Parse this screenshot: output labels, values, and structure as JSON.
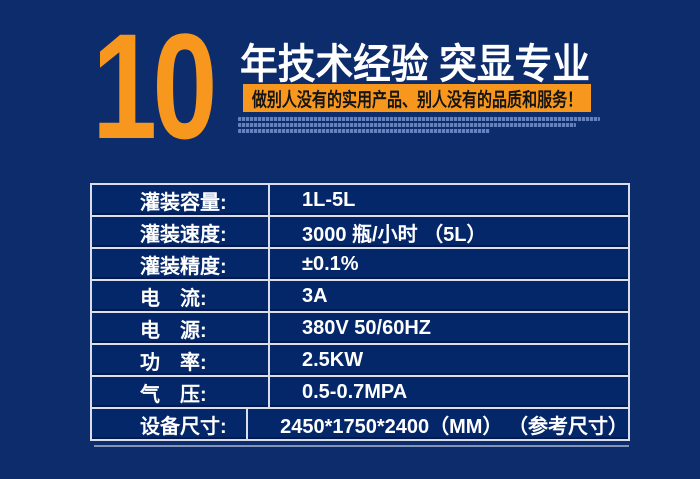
{
  "colors": {
    "page_bg": "#0d2c6c",
    "row_bg": "#04276a",
    "table_border": "#d9dee9",
    "accent_orange": "#f8971d",
    "banner_text": "#141414",
    "header_text": "#ffffff"
  },
  "header": {
    "big_number": "10",
    "title": "年技术经验 突显专业",
    "banner": "做别人没有的实用产品、别人没有的品质和服务！",
    "fine_print_lines": 3,
    "fine_print_legible": false
  },
  "spec_table": {
    "rows": [
      {
        "label": "灌装容量:",
        "value": "1L-5L"
      },
      {
        "label": "灌装速度:",
        "value": "3000 瓶/小时 （5L）"
      },
      {
        "label": "灌装精度:",
        "value": "±0.1%"
      },
      {
        "label": "电　流:",
        "value": "3A"
      },
      {
        "label": "电　源:",
        "value": "380V 50/60HZ"
      },
      {
        "label": "功　率:",
        "value": "2.5KW"
      },
      {
        "label": "气　压:",
        "value": "0.5-0.7MPA"
      },
      {
        "label": "设备尺寸:",
        "value": "2450*1750*2400（MM） （参考尺寸）"
      }
    ]
  }
}
